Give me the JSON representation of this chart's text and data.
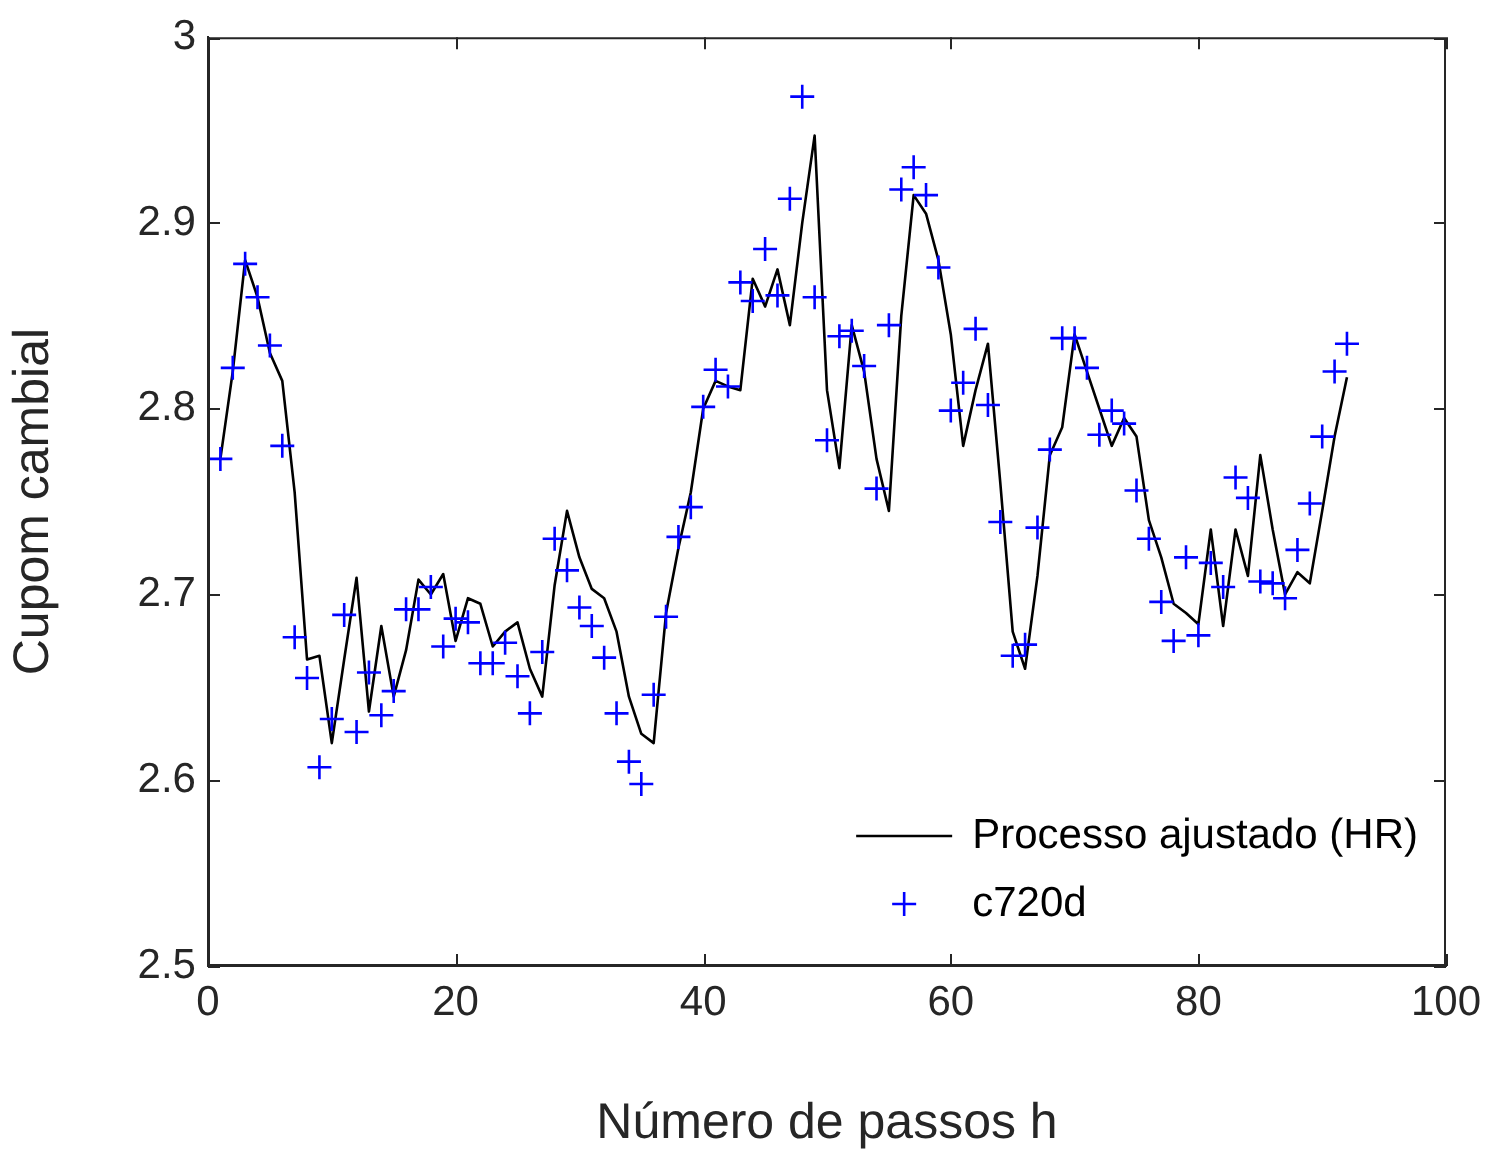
{
  "chart_data": {
    "type": "line",
    "xlabel": "Número de passos h",
    "ylabel": "Cupom cambial",
    "xlim": [
      0,
      100
    ],
    "xticks": [
      0,
      20,
      40,
      60,
      80,
      100
    ],
    "ylim": [
      2.5,
      3
    ],
    "yticks": [
      2.5,
      2.6,
      2.7,
      2.8,
      2.9,
      3
    ],
    "grid": false,
    "legend": "bottom right",
    "series": [
      {
        "name": "Processo ajustado (HR)",
        "type": "line",
        "color": "#000000",
        "marker": "none",
        "line_style": "solid",
        "x": [
          1,
          2,
          3,
          4,
          5,
          6,
          7,
          8,
          9,
          10,
          11,
          12,
          13,
          14,
          15,
          16,
          17,
          18,
          19,
          20,
          21,
          22,
          23,
          24,
          25,
          26,
          27,
          28,
          29,
          30,
          31,
          32,
          33,
          34,
          35,
          36,
          37,
          38,
          39,
          40,
          41,
          42,
          43,
          44,
          45,
          46,
          47,
          48,
          49,
          50,
          51,
          52,
          53,
          54,
          55,
          56,
          57,
          58,
          59,
          60,
          61,
          62,
          63,
          64,
          65,
          66,
          67,
          68,
          69,
          70,
          71,
          72,
          73,
          74,
          75,
          76,
          77,
          78,
          79,
          80,
          81,
          82,
          83,
          84,
          85,
          86,
          87,
          88,
          89,
          90,
          91,
          92
        ],
        "values": [
          2.773,
          2.82,
          2.88,
          2.86,
          2.83,
          2.815,
          2.755,
          2.665,
          2.667,
          2.62,
          2.665,
          2.709,
          2.637,
          2.683,
          2.645,
          2.67,
          2.708,
          2.7,
          2.711,
          2.675,
          2.698,
          2.695,
          2.672,
          2.68,
          2.685,
          2.66,
          2.645,
          2.705,
          2.745,
          2.72,
          2.703,
          2.698,
          2.68,
          2.645,
          2.625,
          2.62,
          2.69,
          2.725,
          2.755,
          2.8,
          2.815,
          2.812,
          2.81,
          2.87,
          2.855,
          2.875,
          2.845,
          2.9,
          2.947,
          2.81,
          2.768,
          2.845,
          2.82,
          2.773,
          2.745,
          2.85,
          2.915,
          2.905,
          2.88,
          2.84,
          2.78,
          2.81,
          2.835,
          2.76,
          2.68,
          2.66,
          2.71,
          2.775,
          2.79,
          2.84,
          2.82,
          2.8,
          2.78,
          2.795,
          2.785,
          2.74,
          2.72,
          2.695,
          2.69,
          2.684,
          2.735,
          2.683,
          2.735,
          2.71,
          2.775,
          2.735,
          2.7,
          2.712,
          2.706,
          2.745,
          2.785,
          2.817
        ]
      },
      {
        "name": "c720d",
        "type": "scatter",
        "color": "#0000ff",
        "marker": "cross",
        "x": [
          1,
          2,
          3,
          4,
          5,
          6,
          7,
          8,
          9,
          10,
          11,
          12,
          13,
          14,
          15,
          16,
          17,
          18,
          19,
          20,
          21,
          22,
          23,
          24,
          25,
          26,
          27,
          28,
          29,
          30,
          31,
          32,
          33,
          34,
          35,
          36,
          37,
          38,
          39,
          40,
          41,
          42,
          43,
          44,
          45,
          46,
          47,
          48,
          49,
          50,
          51,
          52,
          53,
          54,
          55,
          56,
          57,
          58,
          59,
          60,
          61,
          62,
          63,
          64,
          65,
          66,
          67,
          68,
          69,
          70,
          71,
          72,
          73,
          74,
          75,
          76,
          77,
          78,
          79,
          80,
          81,
          82,
          83,
          84,
          85,
          86,
          87,
          88,
          89,
          90,
          91,
          92
        ],
        "values": [
          2.773,
          2.822,
          2.878,
          2.86,
          2.834,
          2.78,
          2.677,
          2.655,
          2.607,
          2.633,
          2.689,
          2.626,
          2.658,
          2.635,
          2.648,
          2.692,
          2.692,
          2.704,
          2.672,
          2.687,
          2.685,
          2.663,
          2.663,
          2.674,
          2.656,
          2.636,
          2.669,
          2.73,
          2.713,
          2.693,
          2.683,
          2.666,
          2.636,
          2.61,
          2.598,
          2.646,
          2.688,
          2.731,
          2.747,
          2.801,
          2.821,
          2.812,
          2.868,
          2.858,
          2.886,
          2.861,
          2.913,
          2.968,
          2.86,
          2.783,
          2.839,
          2.842,
          2.823,
          2.757,
          2.845,
          2.918,
          2.93,
          2.915,
          2.876,
          2.799,
          2.814,
          2.843,
          2.802,
          2.739,
          2.667,
          2.673,
          2.736,
          2.778,
          2.838,
          2.838,
          2.822,
          2.786,
          2.799,
          2.792,
          2.756,
          2.73,
          2.696,
          2.675,
          2.72,
          2.678,
          2.717,
          2.704,
          2.763,
          2.752,
          2.707,
          2.706,
          2.698,
          2.724,
          2.749,
          2.785,
          2.82,
          2.835
        ]
      }
    ]
  }
}
